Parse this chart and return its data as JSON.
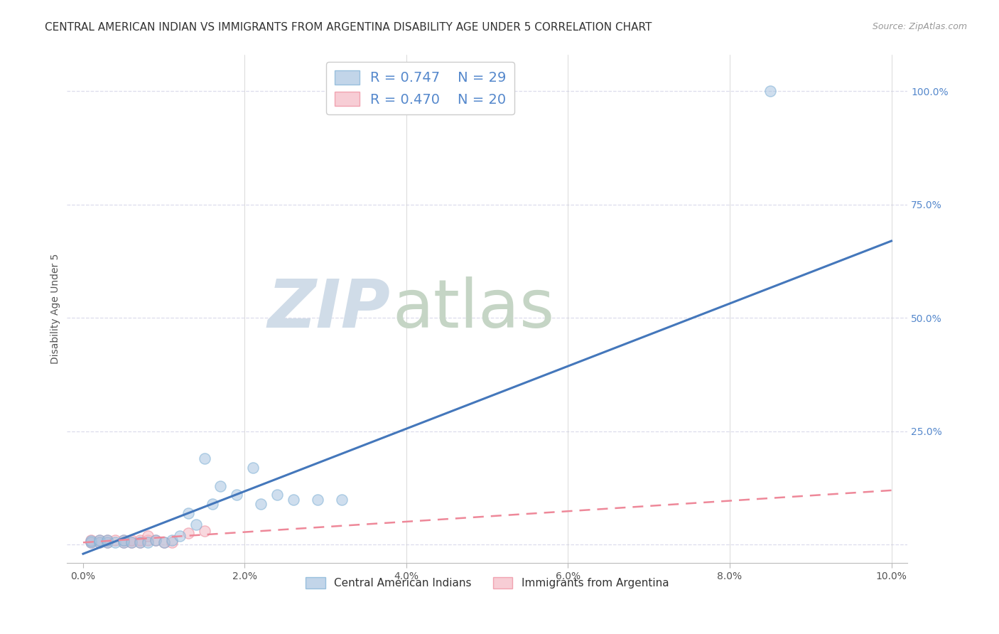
{
  "title": "CENTRAL AMERICAN INDIAN VS IMMIGRANTS FROM ARGENTINA DISABILITY AGE UNDER 5 CORRELATION CHART",
  "source": "Source: ZipAtlas.com",
  "ylabel": "Disability Age Under 5",
  "legend_blue_r": "R = 0.747",
  "legend_blue_n": "N = 29",
  "legend_pink_r": "R = 0.470",
  "legend_pink_n": "N = 20",
  "blue_color": "#A8C4E0",
  "blue_edge_color": "#7BAFD4",
  "blue_line_color": "#4477BB",
  "pink_color": "#F4B8C4",
  "pink_edge_color": "#EE8899",
  "pink_line_color": "#EE8899",
  "blue_scatter_x": [
    0.001,
    0.001,
    0.002,
    0.002,
    0.003,
    0.003,
    0.004,
    0.005,
    0.005,
    0.006,
    0.007,
    0.008,
    0.009,
    0.01,
    0.011,
    0.012,
    0.013,
    0.014,
    0.015,
    0.016,
    0.017,
    0.019,
    0.021,
    0.022,
    0.024,
    0.026,
    0.029,
    0.032,
    0.085
  ],
  "blue_scatter_y": [
    0.005,
    0.008,
    0.005,
    0.01,
    0.005,
    0.01,
    0.005,
    0.005,
    0.01,
    0.005,
    0.005,
    0.005,
    0.01,
    0.005,
    0.01,
    0.02,
    0.07,
    0.045,
    0.19,
    0.09,
    0.13,
    0.11,
    0.17,
    0.09,
    0.11,
    0.1,
    0.1,
    0.1,
    1.0
  ],
  "pink_scatter_x": [
    0.001,
    0.001,
    0.002,
    0.002,
    0.003,
    0.003,
    0.004,
    0.005,
    0.005,
    0.006,
    0.006,
    0.007,
    0.007,
    0.008,
    0.008,
    0.009,
    0.01,
    0.011,
    0.013,
    0.015
  ],
  "pink_scatter_y": [
    0.005,
    0.01,
    0.005,
    0.01,
    0.005,
    0.01,
    0.01,
    0.005,
    0.01,
    0.005,
    0.01,
    0.005,
    0.01,
    0.01,
    0.02,
    0.01,
    0.005,
    0.005,
    0.025,
    0.03
  ],
  "blue_line_x": [
    0.0,
    0.1
  ],
  "blue_line_y": [
    -0.02,
    0.67
  ],
  "pink_line_x": [
    0.0,
    0.1
  ],
  "pink_line_y": [
    0.005,
    0.12
  ],
  "yticks": [
    0.0,
    0.25,
    0.5,
    0.75,
    1.0
  ],
  "ytick_right_labels": [
    "",
    "25.0%",
    "50.0%",
    "75.0%",
    "100.0%"
  ],
  "xticks": [
    0.0,
    0.02,
    0.04,
    0.06,
    0.08,
    0.1
  ],
  "xtick_labels": [
    "0.0%",
    "2.0%",
    "4.0%",
    "6.0%",
    "8.0%",
    "10.0%"
  ],
  "xlim": [
    -0.002,
    0.102
  ],
  "ylim": [
    -0.04,
    1.08
  ],
  "watermark_zip": "ZIP",
  "watermark_atlas": "atlas",
  "watermark_color_zip": "#D0DCE8",
  "watermark_color_atlas": "#C5D5C5",
  "background_color": "#FFFFFF",
  "grid_color": "#DCDCEC",
  "title_fontsize": 11,
  "axis_label_fontsize": 10,
  "tick_label_fontsize": 10,
  "right_tick_color": "#5588CC",
  "source_color": "#999999",
  "source_fontsize": 9,
  "scatter_size": 120,
  "scatter_alpha": 0.55
}
